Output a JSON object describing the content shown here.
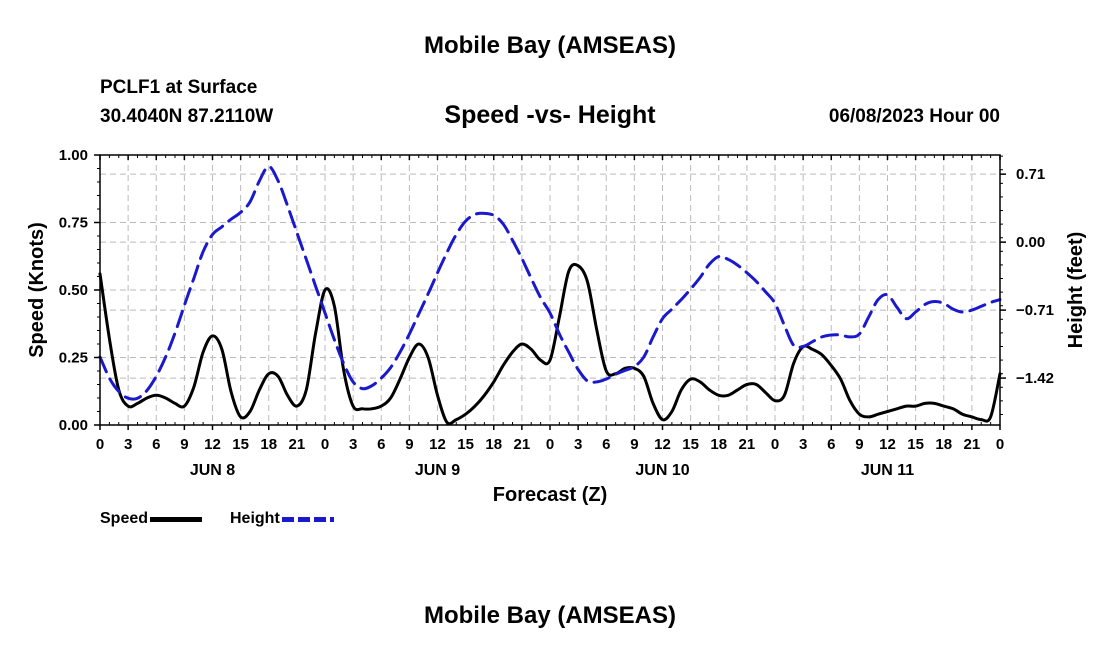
{
  "header": {
    "title": "Mobile Bay (AMSEAS)",
    "station": "PCLF1 at Surface",
    "coords": "30.4040N  87.2110W",
    "subtitle": "Speed -vs- Height",
    "date": "06/08/2023 Hour 00"
  },
  "footer": {
    "title": "Mobile Bay (AMSEAS)"
  },
  "legend": {
    "speed_label": "Speed",
    "height_label": "Height"
  },
  "colors": {
    "speed": "#000000",
    "height": "#1a1acc",
    "grid": "#bbbbbb"
  },
  "chart_data": {
    "type": "line",
    "xlabel": "Forecast (Z)",
    "ylabel": "Speed (Knots)",
    "y2label": "Height (feet)",
    "xlim": [
      0,
      96
    ],
    "ylim": [
      0,
      1
    ],
    "y2lim": [
      -1.91,
      0.91
    ],
    "x_ticks": [
      0,
      3,
      6,
      9,
      12,
      15,
      18,
      21,
      24,
      27,
      30,
      33,
      36,
      39,
      42,
      45,
      48,
      51,
      54,
      57,
      60,
      63,
      66,
      69,
      72,
      75,
      78,
      81,
      84,
      87,
      90,
      93,
      96
    ],
    "x_tick_labels": [
      "0",
      "3",
      "6",
      "9",
      "12",
      "15",
      "18",
      "21",
      "0",
      "3",
      "6",
      "9",
      "12",
      "15",
      "18",
      "21",
      "0",
      "3",
      "6",
      "9",
      "12",
      "15",
      "18",
      "21",
      "0",
      "3",
      "6",
      "9",
      "12",
      "15",
      "18",
      "21",
      "0"
    ],
    "day_labels": [
      {
        "label": "JUN 8",
        "x": 12
      },
      {
        "label": "JUN 9",
        "x": 36
      },
      {
        "label": "JUN 10",
        "x": 60
      },
      {
        "label": "JUN 11",
        "x": 84
      }
    ],
    "y_ticks": [
      0,
      0.25,
      0.5,
      0.75,
      1.0
    ],
    "y_tick_labels": [
      "0.00",
      "0.25",
      "0.50",
      "0.75",
      "1.00"
    ],
    "y2_ticks": [
      0.71,
      0.0,
      -0.71,
      -1.42
    ],
    "y2_tick_labels": [
      "0.71",
      "0.00",
      "−0.71",
      "−1.42"
    ],
    "series": [
      {
        "name": "Speed",
        "axis": "left",
        "style": "solid",
        "x": [
          0,
          1,
          2,
          3,
          4,
          5,
          6,
          7,
          8,
          9,
          10,
          11,
          12,
          13,
          14,
          15,
          16,
          17,
          18,
          19,
          20,
          21,
          22,
          23,
          24,
          25,
          26,
          27,
          28,
          29,
          30,
          31,
          32,
          33,
          34,
          35,
          36,
          37,
          38,
          39,
          40,
          41,
          42,
          43,
          44,
          45,
          46,
          47,
          48,
          49,
          50,
          51,
          52,
          53,
          54,
          55,
          56,
          57,
          58,
          59,
          60,
          61,
          62,
          63,
          64,
          65,
          66,
          67,
          68,
          69,
          70,
          71,
          72,
          73,
          74,
          75,
          76,
          77,
          78,
          79,
          80,
          81,
          82,
          83,
          84,
          85,
          86,
          87,
          88,
          89,
          90,
          91,
          92,
          93,
          94,
          95,
          96
        ],
        "values": [
          0.56,
          0.32,
          0.13,
          0.07,
          0.08,
          0.1,
          0.11,
          0.1,
          0.08,
          0.07,
          0.14,
          0.27,
          0.33,
          0.28,
          0.12,
          0.03,
          0.05,
          0.13,
          0.19,
          0.18,
          0.11,
          0.07,
          0.13,
          0.34,
          0.5,
          0.44,
          0.2,
          0.07,
          0.06,
          0.06,
          0.07,
          0.1,
          0.17,
          0.25,
          0.3,
          0.25,
          0.11,
          0.01,
          0.02,
          0.04,
          0.07,
          0.11,
          0.16,
          0.22,
          0.27,
          0.3,
          0.28,
          0.24,
          0.24,
          0.4,
          0.57,
          0.59,
          0.53,
          0.35,
          0.2,
          0.19,
          0.21,
          0.21,
          0.18,
          0.08,
          0.02,
          0.05,
          0.13,
          0.17,
          0.16,
          0.13,
          0.11,
          0.11,
          0.13,
          0.15,
          0.15,
          0.12,
          0.09,
          0.11,
          0.23,
          0.29,
          0.28,
          0.26,
          0.22,
          0.17,
          0.09,
          0.04,
          0.03,
          0.04,
          0.05,
          0.06,
          0.07,
          0.07,
          0.08,
          0.08,
          0.07,
          0.06,
          0.04,
          0.03,
          0.02,
          0.03,
          0.19
        ]
      },
      {
        "name": "Height",
        "axis": "right",
        "style": "dashed",
        "x": [
          0,
          1,
          2,
          3,
          4,
          5,
          6,
          7,
          8,
          9,
          10,
          11,
          12,
          13,
          14,
          15,
          16,
          17,
          18,
          19,
          20,
          21,
          22,
          23,
          24,
          25,
          26,
          27,
          28,
          29,
          30,
          31,
          32,
          33,
          34,
          35,
          36,
          37,
          38,
          39,
          40,
          41,
          42,
          43,
          44,
          45,
          46,
          47,
          48,
          49,
          50,
          51,
          52,
          53,
          54,
          55,
          56,
          57,
          58,
          59,
          60,
          61,
          62,
          63,
          64,
          65,
          66,
          67,
          68,
          69,
          70,
          71,
          72,
          73,
          74,
          75,
          76,
          77,
          78,
          79,
          80,
          81,
          82,
          83,
          84,
          85,
          86,
          87,
          88,
          89,
          90,
          91,
          92,
          93,
          94,
          95,
          96
        ],
        "values": [
          -1.2,
          -1.42,
          -1.56,
          -1.63,
          -1.63,
          -1.55,
          -1.4,
          -1.2,
          -0.95,
          -0.66,
          -0.38,
          -0.1,
          0.08,
          0.16,
          0.24,
          0.31,
          0.42,
          0.64,
          0.79,
          0.64,
          0.38,
          0.1,
          -0.18,
          -0.46,
          -0.74,
          -1.02,
          -1.27,
          -1.46,
          -1.53,
          -1.5,
          -1.42,
          -1.31,
          -1.15,
          -0.96,
          -0.75,
          -0.54,
          -0.32,
          -0.11,
          0.08,
          0.22,
          0.29,
          0.3,
          0.28,
          0.19,
          0.02,
          -0.17,
          -0.38,
          -0.58,
          -0.74,
          -0.96,
          -1.15,
          -1.33,
          -1.45,
          -1.46,
          -1.43,
          -1.38,
          -1.34,
          -1.3,
          -1.2,
          -0.99,
          -0.8,
          -0.7,
          -0.6,
          -0.49,
          -0.37,
          -0.23,
          -0.15,
          -0.18,
          -0.24,
          -0.32,
          -0.41,
          -0.52,
          -0.64,
          -0.87,
          -1.08,
          -1.09,
          -1.04,
          -0.99,
          -0.97,
          -0.97,
          -0.99,
          -0.96,
          -0.78,
          -0.6,
          -0.55,
          -0.68,
          -0.8,
          -0.73,
          -0.65,
          -0.62,
          -0.64,
          -0.7,
          -0.73,
          -0.71,
          -0.67,
          -0.63,
          -0.6
        ]
      }
    ]
  }
}
